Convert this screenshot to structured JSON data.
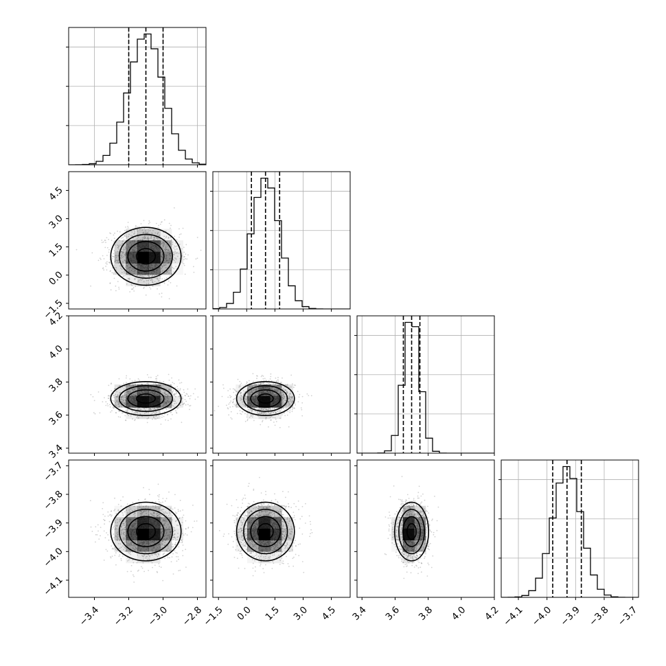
{
  "chart_data": {
    "type": "corner",
    "grid": true,
    "colors": {
      "line": "#000000",
      "grid": "#b0b0b0",
      "scatter": "#9a9a9a",
      "density": "#000000"
    },
    "parameters": [
      {
        "id": "p0",
        "range": [
          -3.55,
          -2.75
        ],
        "mean": -3.1,
        "sigma": 0.1,
        "quantiles": [
          -3.2,
          -3.1,
          -3.0
        ],
        "ticks": [
          {
            "v": -3.4,
            "t": "−3.4"
          },
          {
            "v": -3.2,
            "t": "−3.2"
          },
          {
            "v": -3.0,
            "t": "−3.0"
          },
          {
            "v": -2.8,
            "t": "−2.8"
          }
        ]
      },
      {
        "id": "p1",
        "range": [
          -1.8,
          5.5
        ],
        "mean": 1.0,
        "sigma": 0.75,
        "quantiles": [
          0.25,
          1.0,
          1.75
        ],
        "ticks": [
          {
            "v": -1.5,
            "t": "−1.5"
          },
          {
            "v": 0.0,
            "t": "0.0"
          },
          {
            "v": 1.5,
            "t": "1.5"
          },
          {
            "v": 3.0,
            "t": "3.0"
          },
          {
            "v": 4.5,
            "t": "4.5"
          }
        ]
      },
      {
        "id": "p2",
        "range": [
          3.37,
          4.2
        ],
        "mean": 3.7,
        "sigma": 0.05,
        "quantiles": [
          3.65,
          3.7,
          3.75
        ],
        "ticks": [
          {
            "v": 3.4,
            "t": "3.4"
          },
          {
            "v": 3.6,
            "t": "3.6"
          },
          {
            "v": 3.8,
            "t": "3.8"
          },
          {
            "v": 4.0,
            "t": "4.0"
          },
          {
            "v": 4.2,
            "t": "4.2"
          }
        ]
      },
      {
        "id": "p3",
        "range": [
          -4.16,
          -3.68
        ],
        "mean": -3.93,
        "sigma": 0.05,
        "quantiles": [
          -3.98,
          -3.93,
          -3.88
        ],
        "ticks": [
          {
            "v": -4.1,
            "t": "−4.1"
          },
          {
            "v": -4.0,
            "t": "−4.0"
          },
          {
            "v": -3.9,
            "t": "−3.9"
          },
          {
            "v": -3.8,
            "t": "−3.8"
          },
          {
            "v": -3.7,
            "t": "−3.7"
          }
        ]
      }
    ]
  }
}
